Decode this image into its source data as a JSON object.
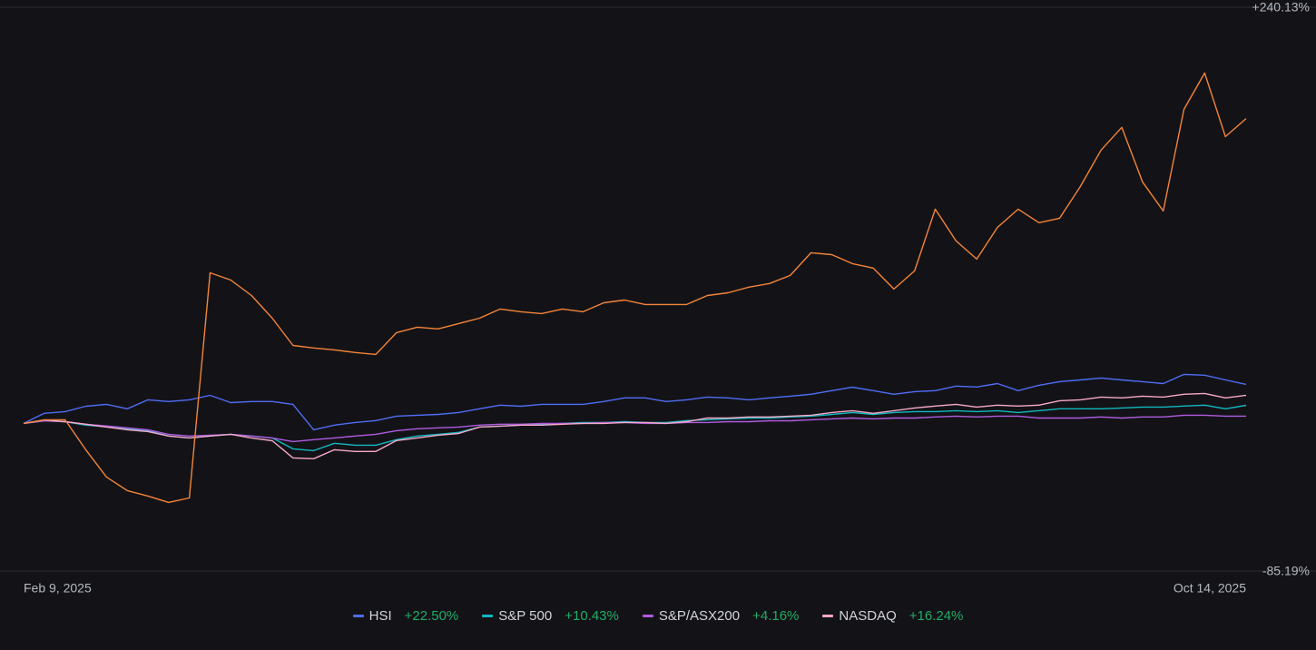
{
  "chart_data": {
    "type": "line",
    "categories": [
      "Feb 9, 2025",
      null,
      null,
      null,
      null,
      null,
      null,
      null,
      null,
      null,
      null,
      null,
      null,
      null,
      null,
      null,
      null,
      null,
      null,
      null,
      null,
      null,
      null,
      null,
      null,
      null,
      null,
      null,
      null,
      null,
      null,
      null,
      null,
      null,
      null,
      null,
      null,
      null,
      null,
      null,
      null,
      null,
      null,
      null,
      null,
      null,
      null,
      null,
      null,
      null,
      null,
      null,
      null,
      null,
      null,
      null,
      null,
      null,
      null,
      "Oct 14, 2025"
    ],
    "ylim": [
      -85.19,
      240.13
    ],
    "yticks": [
      {
        "value": 240.13,
        "label": "+240.13%"
      },
      {
        "value": -85.19,
        "label": "-85.19%"
      }
    ],
    "grid": true,
    "series": [
      {
        "color": "#f4843a",
        "values": [
          0,
          2.1,
          2.1,
          -15.2,
          -30.9,
          -38.8,
          -41.9,
          -45.6,
          -43.0,
          86.9,
          82.7,
          73.8,
          60.7,
          45.0,
          43.5,
          42.4,
          40.9,
          39.8,
          52.4,
          55.5,
          54.5,
          57.6,
          60.7,
          66.0,
          64.4,
          63.4,
          66.0,
          64.4,
          69.6,
          71.2,
          68.6,
          68.6,
          68.6,
          73.8,
          75.4,
          78.6,
          80.7,
          85.4,
          98.5,
          97.4,
          92.2,
          89.6,
          77.5,
          88.0,
          123.6,
          105.3,
          94.8,
          113.1,
          123.6,
          115.8,
          118.4,
          136.7,
          157.7,
          170.8,
          139.4,
          122.6,
          181.2,
          202.2,
          165.5,
          175.9
        ]
      },
      {
        "name": "HSI",
        "color": "#4f6df5",
        "last_label": "+22.50%",
        "values": [
          0,
          5.8,
          6.8,
          9.9,
          11.0,
          8.4,
          13.6,
          12.6,
          13.6,
          16.2,
          12.0,
          12.6,
          12.6,
          11.0,
          -3.7,
          -1.0,
          0.5,
          1.6,
          4.2,
          4.7,
          5.2,
          6.3,
          8.4,
          10.5,
          9.9,
          11.0,
          11.0,
          11.0,
          12.6,
          14.7,
          14.7,
          12.6,
          13.6,
          15.2,
          14.7,
          13.6,
          14.7,
          15.7,
          16.8,
          18.9,
          20.9,
          18.9,
          16.8,
          18.3,
          18.9,
          21.5,
          21.0,
          23.0,
          18.9,
          22.0,
          24.1,
          25.1,
          26.2,
          25.1,
          24.1,
          23.0,
          28.3,
          27.8,
          25.1,
          22.5
        ]
      },
      {
        "name": "S&P 500",
        "color": "#13b8c0",
        "last_label": "+10.43%",
        "values": [
          0,
          1.5,
          1.0,
          -1.0,
          -2.0,
          -3.1,
          -4.2,
          -7.3,
          -8.4,
          -7.3,
          -6.3,
          -7.3,
          -8.4,
          -14.7,
          -15.7,
          -11.5,
          -12.6,
          -12.6,
          -9.4,
          -7.3,
          -6.3,
          -5.2,
          -2.1,
          -1.6,
          -1.0,
          -0.5,
          0,
          0.5,
          0.5,
          1.0,
          0.5,
          0.5,
          1.6,
          2.1,
          2.6,
          3.1,
          3.1,
          3.7,
          4.2,
          5.2,
          6.3,
          5.2,
          6.3,
          6.8,
          6.8,
          7.3,
          6.8,
          7.3,
          6.3,
          7.3,
          8.4,
          8.4,
          8.4,
          8.9,
          9.4,
          9.4,
          10.0,
          10.5,
          8.4,
          10.43
        ]
      },
      {
        "name": "S&P/ASX200",
        "color": "#b05be0",
        "last_label": "+4.16%",
        "values": [
          0,
          1.5,
          1.0,
          -0.5,
          -1.5,
          -2.6,
          -3.7,
          -6.3,
          -7.3,
          -6.8,
          -6.3,
          -7.3,
          -8.4,
          -10.5,
          -9.4,
          -8.4,
          -7.3,
          -6.3,
          -4.2,
          -3.1,
          -2.6,
          -2.1,
          -1.0,
          -0.5,
          -0.5,
          0,
          0,
          0,
          0.5,
          0.5,
          0,
          0,
          0.5,
          0.5,
          1.0,
          1.0,
          1.5,
          1.5,
          2.1,
          2.6,
          3.1,
          2.6,
          3.1,
          3.1,
          3.7,
          4.2,
          3.7,
          4.2,
          4.2,
          3.1,
          3.1,
          3.1,
          3.7,
          3.1,
          3.7,
          3.7,
          4.7,
          4.7,
          4.2,
          4.16
        ]
      },
      {
        "name": "NASDAQ",
        "color": "#f5a8c7",
        "last_label": "+16.24%",
        "values": [
          0,
          2.0,
          1.0,
          -0.5,
          -2.1,
          -3.7,
          -4.7,
          -7.3,
          -8.4,
          -7.3,
          -6.3,
          -8.4,
          -10.0,
          -19.9,
          -20.4,
          -15.2,
          -16.2,
          -16.2,
          -9.9,
          -8.4,
          -6.8,
          -5.8,
          -2.1,
          -1.6,
          -1.0,
          -1.0,
          -0.5,
          0,
          0,
          0.5,
          0.5,
          0,
          1.0,
          3.1,
          3.1,
          3.7,
          3.7,
          4.2,
          4.7,
          6.3,
          7.3,
          5.8,
          7.3,
          8.9,
          10.0,
          11.0,
          9.4,
          10.5,
          10.0,
          10.5,
          13.1,
          13.6,
          15.2,
          14.7,
          15.7,
          15.2,
          16.8,
          17.3,
          14.7,
          16.24
        ]
      }
    ]
  }
}
